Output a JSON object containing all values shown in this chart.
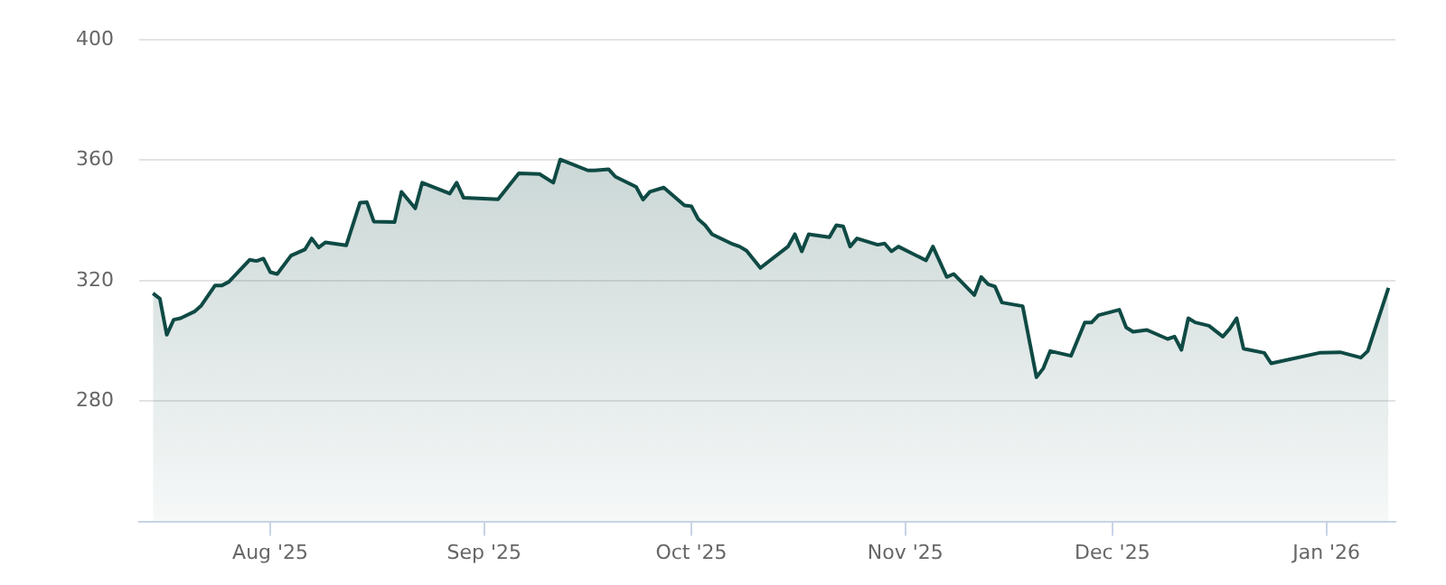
{
  "chart_data": {
    "type": "area",
    "grid": "y",
    "ylim": [
      240,
      400
    ],
    "yticks": [
      280,
      320,
      360,
      400
    ],
    "xlim": [
      "2025-07-13",
      "2026-01-11"
    ],
    "xticks": [
      {
        "value": "2025-08-01",
        "label": "Aug '25"
      },
      {
        "value": "2025-09-01",
        "label": "Sep '25"
      },
      {
        "value": "2025-10-01",
        "label": "Oct '25"
      },
      {
        "value": "2025-11-01",
        "label": "Nov '25"
      },
      {
        "value": "2025-12-01",
        "label": "Dec '25"
      },
      {
        "value": "2026-01-01",
        "label": "Jan '26"
      }
    ],
    "x": [
      "2025-07-15",
      "2025-07-16",
      "2025-07-17",
      "2025-07-18",
      "2025-07-19",
      "2025-07-21",
      "2025-07-22",
      "2025-07-24",
      "2025-07-25",
      "2025-07-26",
      "2025-07-29",
      "2025-07-30",
      "2025-07-31",
      "2025-08-01",
      "2025-08-02",
      "2025-08-04",
      "2025-08-06",
      "2025-08-07",
      "2025-08-08",
      "2025-08-09",
      "2025-08-12",
      "2025-08-14",
      "2025-08-15",
      "2025-08-16",
      "2025-08-19",
      "2025-08-20",
      "2025-08-22",
      "2025-08-23",
      "2025-08-27",
      "2025-08-28",
      "2025-08-29",
      "2025-09-03",
      "2025-09-06",
      "2025-09-09",
      "2025-09-11",
      "2025-09-12",
      "2025-09-16",
      "2025-09-17",
      "2025-09-19",
      "2025-09-20",
      "2025-09-23",
      "2025-09-24",
      "2025-09-25",
      "2025-09-27",
      "2025-09-30",
      "2025-10-01",
      "2025-10-02",
      "2025-10-03",
      "2025-10-04",
      "2025-10-07",
      "2025-10-08",
      "2025-10-09",
      "2025-10-11",
      "2025-10-15",
      "2025-10-16",
      "2025-10-17",
      "2025-10-18",
      "2025-10-21",
      "2025-10-22",
      "2025-10-23",
      "2025-10-24",
      "2025-10-25",
      "2025-10-28",
      "2025-10-29",
      "2025-10-30",
      "2025-10-31",
      "2025-11-04",
      "2025-11-05",
      "2025-11-07",
      "2025-11-08",
      "2025-11-11",
      "2025-11-12",
      "2025-11-13",
      "2025-11-14",
      "2025-11-15",
      "2025-11-18",
      "2025-11-20",
      "2025-11-21",
      "2025-11-22",
      "2025-11-25",
      "2025-11-27",
      "2025-11-28",
      "2025-11-29",
      "2025-12-02",
      "2025-12-03",
      "2025-12-04",
      "2025-12-06",
      "2025-12-09",
      "2025-12-10",
      "2025-12-11",
      "2025-12-12",
      "2025-12-13",
      "2025-12-15",
      "2025-12-17",
      "2025-12-18",
      "2025-12-19",
      "2025-12-20",
      "2025-12-23",
      "2025-12-24",
      "2025-12-31",
      "2026-01-03",
      "2026-01-06",
      "2026-01-07",
      "2026-01-10"
    ],
    "series": [
      {
        "color": "#0f4a44",
        "values": [
          315.8,
          314,
          302,
          307,
          307.5,
          309.7,
          311.7,
          318.4,
          318.4,
          319.6,
          326.9,
          326.5,
          327.3,
          322.8,
          322.2,
          328.3,
          330.3,
          334,
          331,
          332.7,
          331.7,
          345.9,
          346,
          339.6,
          339.4,
          349.5,
          344,
          352.5,
          348.9,
          352.5,
          347.5,
          347,
          355.6,
          355.4,
          352.5,
          360.2,
          356.6,
          356.6,
          357,
          354.5,
          351.1,
          346.9,
          349.5,
          350.9,
          345,
          344.7,
          340.4,
          338.4,
          335.4,
          332.1,
          331.3,
          329.9,
          324.2,
          331.3,
          335.4,
          329.7,
          335.4,
          334.4,
          338.4,
          338,
          331.3,
          334,
          331.9,
          332.3,
          329.7,
          331.3,
          326.7,
          331.3,
          321.2,
          322.2,
          315.2,
          321.2,
          318.8,
          318,
          312.7,
          311.5,
          287.9,
          290.9,
          296.6,
          295,
          306.1,
          306.1,
          308.5,
          310.3,
          304.4,
          303,
          303.6,
          300.6,
          301.4,
          297,
          307.5,
          306.1,
          305,
          301.4,
          304,
          307.5,
          297.4,
          296,
          292.5,
          296,
          296.2,
          294.4,
          296.6,
          317.6
        ]
      }
    ]
  }
}
